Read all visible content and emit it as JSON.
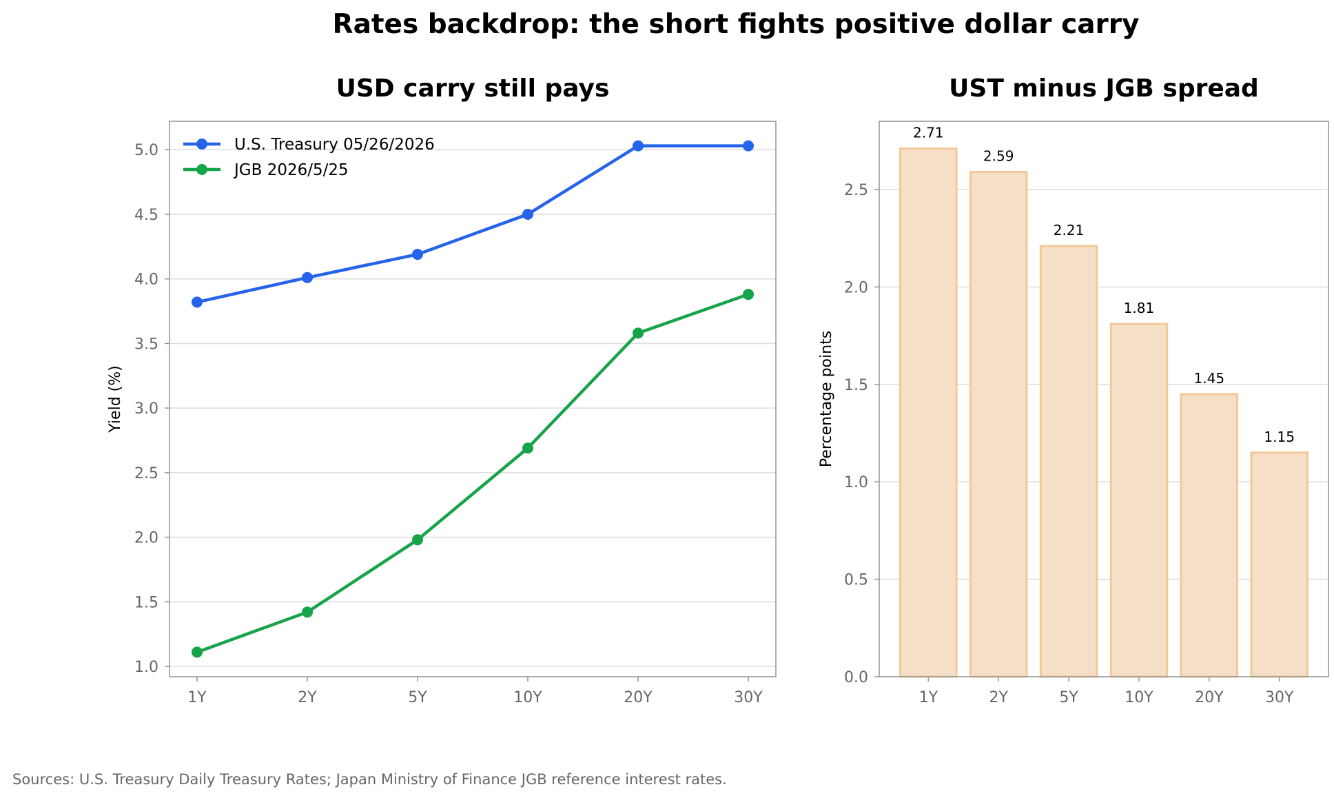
{
  "figure": {
    "title": "Rates backdrop: the short fights positive dollar carry",
    "source_note": "Sources: U.S. Treasury Daily Treasury Rates; Japan Ministry of Finance JGB reference interest rates."
  },
  "chart_data": [
    {
      "type": "line",
      "title": "USD carry still pays",
      "xlabel": "",
      "ylabel": "Yield (%)",
      "categories": [
        "1Y",
        "2Y",
        "5Y",
        "10Y",
        "20Y",
        "30Y"
      ],
      "ylim": [
        0.92,
        5.22
      ],
      "yticks": [
        "1.0",
        "1.5",
        "2.0",
        "2.5",
        "3.0",
        "3.5",
        "4.0",
        "4.5",
        "5.0"
      ],
      "grid": "horizontal",
      "legend_position": "top-left",
      "series": [
        {
          "name": "U.S. Treasury 05/26/2026",
          "color": "#2563eb",
          "marker": "circle",
          "values": [
            3.82,
            4.01,
            4.19,
            4.5,
            5.03,
            5.03
          ]
        },
        {
          "name": "JGB 2026/5/25",
          "color": "#16a34a",
          "marker": "circle",
          "values": [
            1.11,
            1.42,
            1.98,
            2.69,
            3.58,
            3.88
          ]
        }
      ]
    },
    {
      "type": "bar",
      "title": "UST minus JGB spread",
      "xlabel": "",
      "ylabel": "Percentage points",
      "categories": [
        "1Y",
        "2Y",
        "5Y",
        "10Y",
        "20Y",
        "30Y"
      ],
      "values": [
        2.71,
        2.59,
        2.21,
        1.81,
        1.45,
        1.15
      ],
      "value_labels": [
        "2.71",
        "2.59",
        "2.21",
        "1.81",
        "1.45",
        "1.15"
      ],
      "ylim": [
        0,
        2.85
      ],
      "yticks": [
        "0.0",
        "0.5",
        "1.0",
        "1.5",
        "2.0",
        "2.5"
      ],
      "grid": "horizontal",
      "bar_fill_color": "#f5dfc7",
      "bar_edge_color": "#f2c89a"
    }
  ]
}
